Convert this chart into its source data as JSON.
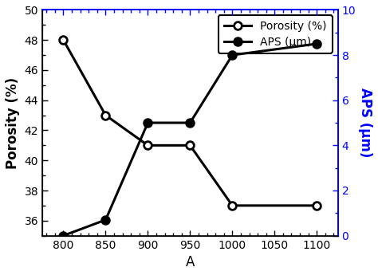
{
  "x": [
    800,
    850,
    900,
    950,
    1000,
    1100
  ],
  "porosity": [
    48.0,
    43.0,
    41.0,
    41.0,
    37.0,
    37.0
  ],
  "aps": [
    0.0,
    0.7,
    5.0,
    5.0,
    8.0,
    8.5
  ],
  "xlabel": "A",
  "ylabel_left": "Porosity (%)",
  "ylabel_right": "APS (μm)",
  "legend_porosity": "Porosity (%)",
  "legend_aps": "APS (μm)",
  "xlim": [
    775,
    1125
  ],
  "ylim_left": [
    35,
    50
  ],
  "ylim_right": [
    0,
    10
  ],
  "xticks": [
    800,
    850,
    900,
    950,
    1000,
    1050,
    1100
  ],
  "yticks_left": [
    36,
    38,
    40,
    42,
    44,
    46,
    48,
    50
  ],
  "yticks_right": [
    0,
    2,
    4,
    6,
    8,
    10
  ],
  "color_left": "black",
  "color_right": "blue",
  "linewidth": 2.2,
  "markersize": 7
}
